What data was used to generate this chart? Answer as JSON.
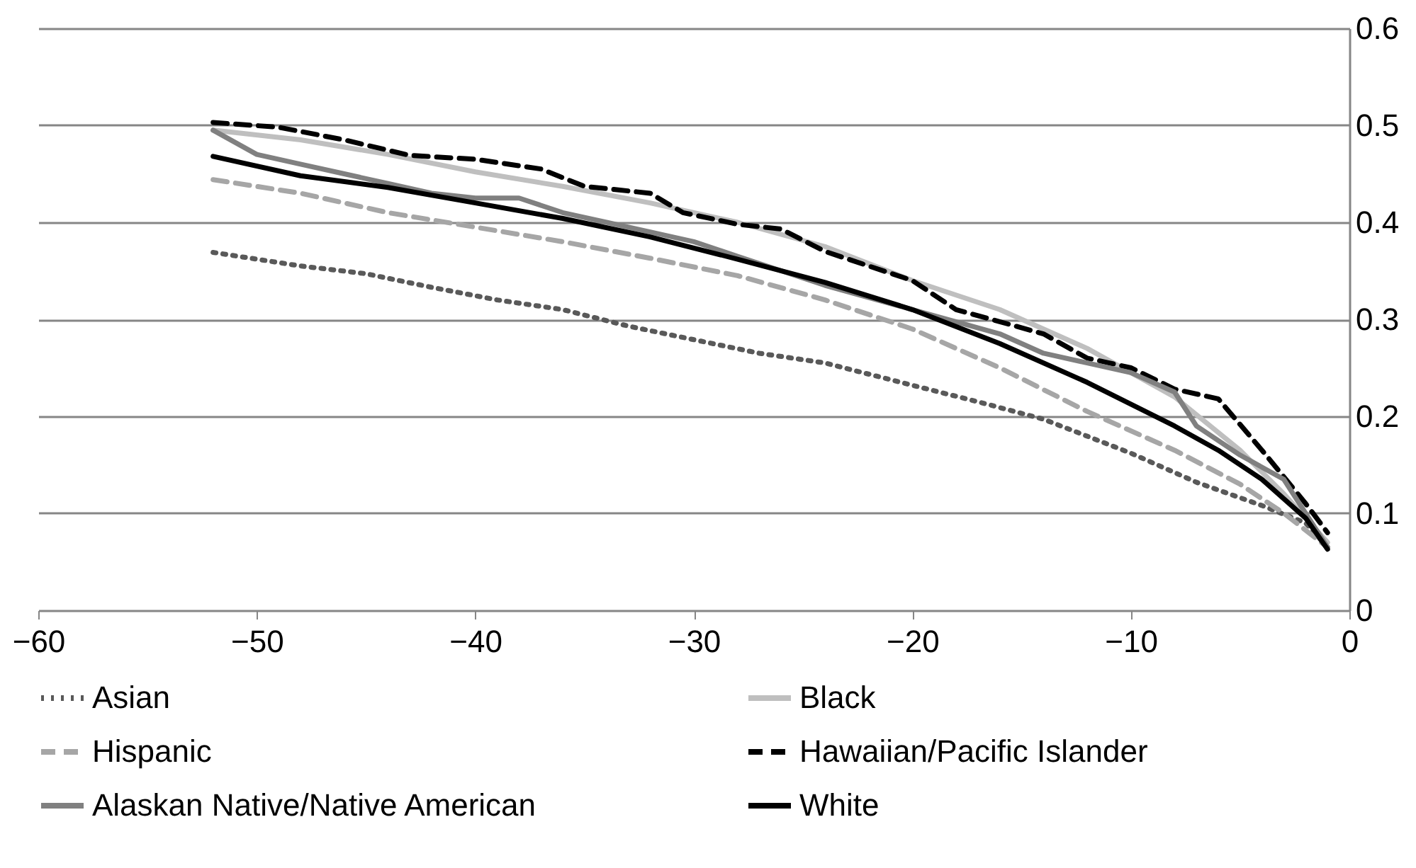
{
  "chart_data": {
    "type": "line",
    "xlim": [
      -60,
      0
    ],
    "xticks": [
      -60,
      -50,
      -40,
      -30,
      -20,
      -10,
      0
    ],
    "ylim": [
      0,
      0.6
    ],
    "yticks": [
      0,
      0.1,
      0.2,
      0.3,
      0.4,
      0.5,
      0.6
    ],
    "grid": "y",
    "legend": "bottom",
    "marker": "none",
    "series": [
      {
        "name": "Asian",
        "color": "#595959",
        "line_style": "dotted",
        "x": [
          -52,
          -48,
          -45,
          -42,
          -39,
          -36,
          -33,
          -30,
          -27,
          -24,
          -20,
          -17,
          -14,
          -10,
          -7,
          -4,
          -2,
          -1
        ],
        "values": [
          0.369,
          0.355,
          0.347,
          0.333,
          0.32,
          0.31,
          0.293,
          0.279,
          0.265,
          0.255,
          0.232,
          0.215,
          0.197,
          0.162,
          0.132,
          0.108,
          0.09,
          0.065
        ]
      },
      {
        "name": "Black",
        "color": "#bfbfbf",
        "line_style": "solid",
        "x": [
          -52,
          -48,
          -44,
          -40,
          -36,
          -32,
          -28,
          -24,
          -20,
          -16,
          -12,
          -8,
          -5,
          -3,
          -1
        ],
        "values": [
          0.495,
          0.485,
          0.47,
          0.452,
          0.437,
          0.42,
          0.4,
          0.375,
          0.34,
          0.31,
          0.27,
          0.22,
          0.165,
          0.12,
          0.07
        ]
      },
      {
        "name": "Hispanic",
        "color": "#a6a6a6",
        "line_style": "dashed",
        "x": [
          -52,
          -48,
          -44,
          -40,
          -36,
          -32,
          -28,
          -24,
          -20,
          -16,
          -12,
          -8,
          -5,
          -3,
          -1
        ],
        "values": [
          0.444,
          0.43,
          0.41,
          0.395,
          0.38,
          0.363,
          0.345,
          0.32,
          0.29,
          0.25,
          0.205,
          0.165,
          0.13,
          0.1,
          0.065
        ]
      },
      {
        "name": "Hawaiian/Pacific Islander",
        "color": "#000000",
        "line_style": "dashed",
        "x": [
          -52,
          -49,
          -46,
          -43,
          -40,
          -37,
          -35,
          -32,
          -30.5,
          -28,
          -26,
          -24,
          -20,
          -18,
          -14,
          -12,
          -10,
          -8,
          -6,
          -4,
          -2,
          -1
        ],
        "values": [
          0.503,
          0.498,
          0.485,
          0.469,
          0.465,
          0.455,
          0.437,
          0.43,
          0.41,
          0.398,
          0.393,
          0.37,
          0.34,
          0.31,
          0.285,
          0.26,
          0.25,
          0.228,
          0.218,
          0.165,
          0.11,
          0.08
        ]
      },
      {
        "name": "Alaskan Native/Native American",
        "color": "#808080",
        "line_style": "solid",
        "x": [
          -52,
          -50,
          -48,
          -46,
          -44,
          -42,
          -40,
          -38,
          -36,
          -34,
          -32,
          -30,
          -28,
          -26,
          -24,
          -20,
          -16,
          -14,
          -12,
          -10,
          -8,
          -7,
          -5,
          -3,
          -1
        ],
        "values": [
          0.495,
          0.47,
          0.46,
          0.45,
          0.44,
          0.43,
          0.425,
          0.425,
          0.41,
          0.4,
          0.39,
          0.38,
          0.365,
          0.35,
          0.335,
          0.31,
          0.285,
          0.265,
          0.255,
          0.245,
          0.225,
          0.19,
          0.16,
          0.135,
          0.065
        ]
      },
      {
        "name": "White",
        "color": "#000000",
        "line_style": "solid",
        "x": [
          -52,
          -48,
          -44,
          -40,
          -36,
          -32,
          -28,
          -24,
          -20,
          -16,
          -12,
          -8,
          -6,
          -4,
          -2,
          -1
        ],
        "values": [
          0.468,
          0.448,
          0.436,
          0.42,
          0.404,
          0.385,
          0.362,
          0.338,
          0.31,
          0.275,
          0.235,
          0.19,
          0.165,
          0.135,
          0.095,
          0.063
        ]
      }
    ]
  }
}
